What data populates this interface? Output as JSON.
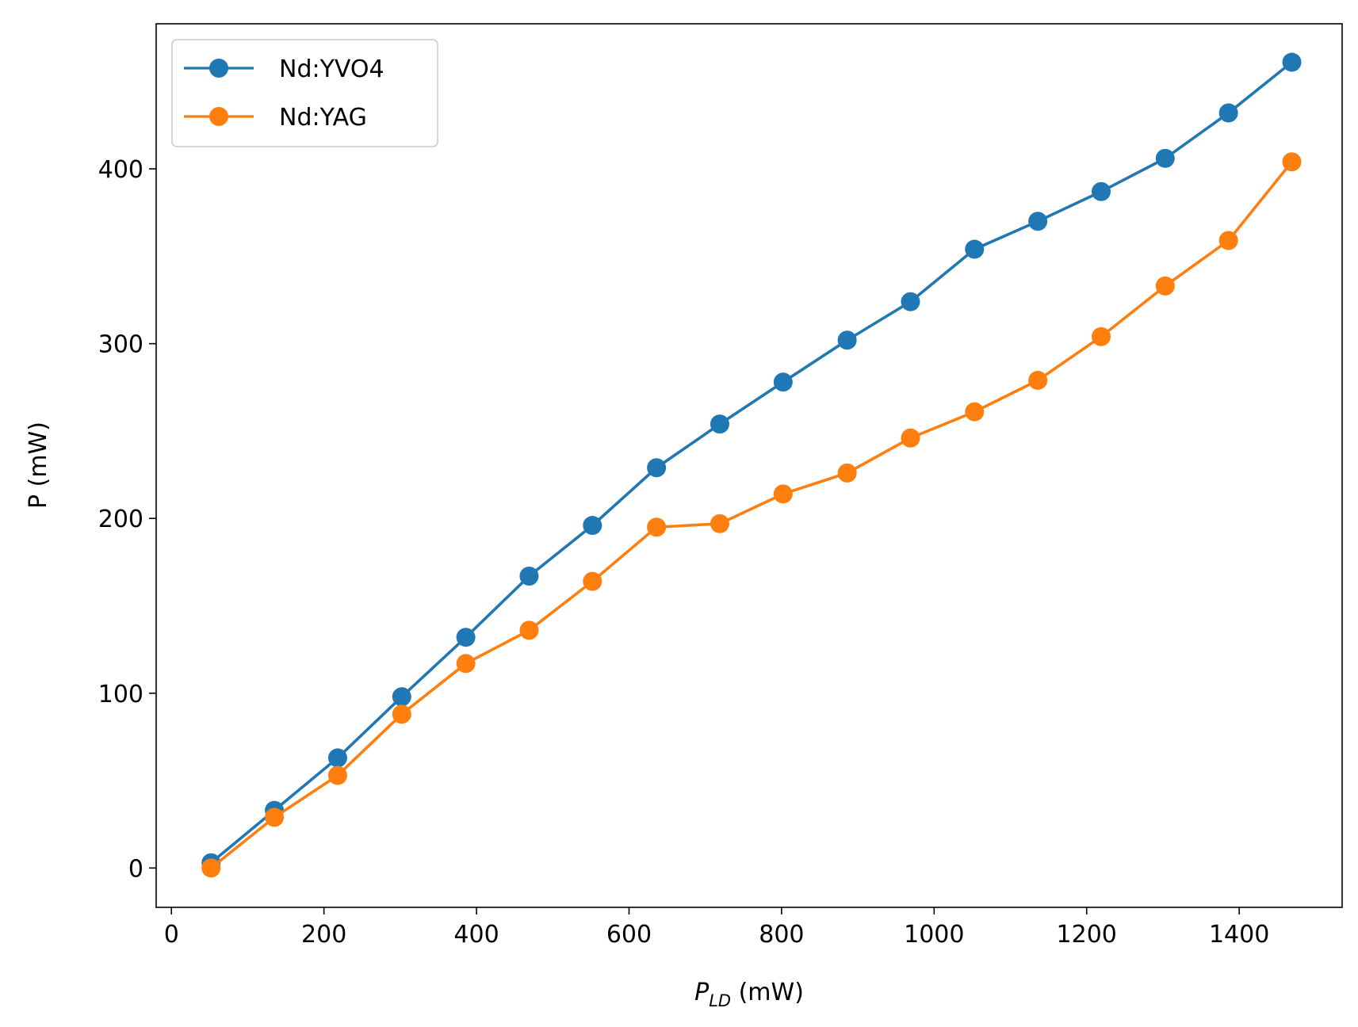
{
  "chart_data": {
    "type": "line",
    "xlabel": {
      "main": "P",
      "sub": "LD",
      "unit": " (mW)"
    },
    "ylabel": "P (mW)",
    "xlim": [
      -20,
      1535
    ],
    "ylim": [
      -22.5,
      483
    ],
    "xticks": [
      0,
      200,
      400,
      600,
      800,
      1000,
      1200,
      1400
    ],
    "yticks": [
      0,
      100,
      200,
      300,
      400
    ],
    "grid": false,
    "legend_position": "top-left",
    "x": [
      52,
      135,
      218,
      302,
      386,
      469,
      552,
      636,
      719,
      802,
      886,
      969,
      1053,
      1136,
      1219,
      1303,
      1386,
      1469
    ],
    "series": [
      {
        "name": "Nd:YVO4",
        "color": "#1f77b4",
        "values": [
          3,
          33,
          63,
          98,
          132,
          167,
          196,
          229,
          254,
          278,
          302,
          324,
          354,
          370,
          387,
          406,
          432,
          461
        ]
      },
      {
        "name": "Nd:YAG",
        "color": "#ff7f0e",
        "values": [
          0,
          29,
          53,
          88,
          117,
          136,
          164,
          195,
          197,
          214,
          226,
          246,
          261,
          279,
          304,
          333,
          359,
          404
        ]
      }
    ]
  }
}
